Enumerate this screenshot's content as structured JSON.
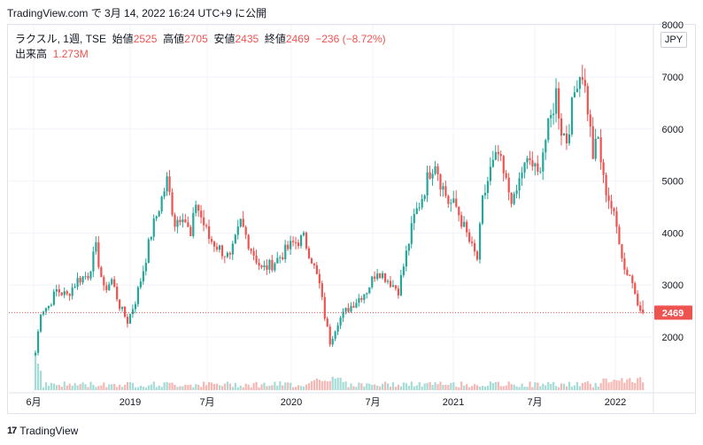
{
  "header": {
    "text": "TradingView.com で 3月 14, 2022 16:24 UTC+9 に公開"
  },
  "legend": {
    "symbol": "ラクスル, 1週, TSE",
    "open_label": "始値",
    "open_value": "2525",
    "high_label": "高値",
    "high_value": "2705",
    "low_label": "安値",
    "low_value": "2435",
    "close_label": "終値",
    "close_value": "2469",
    "change": "−236 (−8.72%)",
    "volume_label": "出来高",
    "volume_value": "1.273M"
  },
  "currency_label": "JPY",
  "footer": {
    "logo": "17",
    "brand": "TradingView"
  },
  "colors": {
    "up": "#26a69a",
    "down": "#ef5350",
    "up_vol": "#a6dcd6",
    "down_vol": "#f5b7b4",
    "grid": "#f0f3fa"
  },
  "chart_data": {
    "type": "candlestick",
    "symbol": "ラクスル",
    "interval": "1週",
    "exchange": "TSE",
    "currency": "JPY",
    "ylim": [
      1100,
      8050
    ],
    "y_ticks": [
      "2000",
      "3000",
      "4000",
      "5000",
      "6000",
      "7000",
      "8000"
    ],
    "x_ticks": [
      "6月",
      "2019",
      "7月",
      "2020",
      "7月",
      "2021",
      "7月",
      "2022"
    ],
    "last_price": "2469",
    "anchors": [
      {
        "w": 0,
        "p": 1700
      },
      {
        "w": 2,
        "p": 2500
      },
      {
        "w": 5,
        "p": 2600
      },
      {
        "w": 8,
        "p": 2900
      },
      {
        "w": 12,
        "p": 2800
      },
      {
        "w": 16,
        "p": 3100
      },
      {
        "w": 20,
        "p": 3200
      },
      {
        "w": 23,
        "p": 3700
      },
      {
        "w": 26,
        "p": 2900
      },
      {
        "w": 29,
        "p": 3100
      },
      {
        "w": 32,
        "p": 2600
      },
      {
        "w": 35,
        "p": 2300
      },
      {
        "w": 38,
        "p": 2700
      },
      {
        "w": 41,
        "p": 3300
      },
      {
        "w": 44,
        "p": 4000
      },
      {
        "w": 47,
        "p": 4500
      },
      {
        "w": 50,
        "p": 5000
      },
      {
        "w": 53,
        "p": 4200
      },
      {
        "w": 56,
        "p": 4400
      },
      {
        "w": 59,
        "p": 3900
      },
      {
        "w": 61,
        "p": 4600
      },
      {
        "w": 63,
        "p": 4300
      },
      {
        "w": 66,
        "p": 3900
      },
      {
        "w": 70,
        "p": 3700
      },
      {
        "w": 74,
        "p": 3500
      },
      {
        "w": 78,
        "p": 4200
      },
      {
        "w": 82,
        "p": 3700
      },
      {
        "w": 86,
        "p": 3300
      },
      {
        "w": 90,
        "p": 3400
      },
      {
        "w": 94,
        "p": 3600
      },
      {
        "w": 98,
        "p": 3800
      },
      {
        "w": 102,
        "p": 3900
      },
      {
        "w": 105,
        "p": 3500
      },
      {
        "w": 108,
        "p": 3000
      },
      {
        "w": 110,
        "p": 2400
      },
      {
        "w": 112,
        "p": 1900
      },
      {
        "w": 115,
        "p": 2300
      },
      {
        "w": 118,
        "p": 2500
      },
      {
        "w": 122,
        "p": 2700
      },
      {
        "w": 126,
        "p": 2900
      },
      {
        "w": 130,
        "p": 3300
      },
      {
        "w": 134,
        "p": 3100
      },
      {
        "w": 138,
        "p": 2900
      },
      {
        "w": 141,
        "p": 3600
      },
      {
        "w": 144,
        "p": 4300
      },
      {
        "w": 147,
        "p": 4700
      },
      {
        "w": 150,
        "p": 5200
      },
      {
        "w": 152,
        "p": 5400
      },
      {
        "w": 154,
        "p": 5000
      },
      {
        "w": 157,
        "p": 4600
      },
      {
        "w": 160,
        "p": 4500
      },
      {
        "w": 163,
        "p": 4100
      },
      {
        "w": 166,
        "p": 3700
      },
      {
        "w": 168,
        "p": 3500
      },
      {
        "w": 170,
        "p": 4600
      },
      {
        "w": 173,
        "p": 5200
      },
      {
        "w": 176,
        "p": 5500
      },
      {
        "w": 178,
        "p": 5100
      },
      {
        "w": 180,
        "p": 4800
      },
      {
        "w": 182,
        "p": 4600
      },
      {
        "w": 185,
        "p": 5200
      },
      {
        "w": 188,
        "p": 5400
      },
      {
        "w": 191,
        "p": 5100
      },
      {
        "w": 193,
        "p": 5600
      },
      {
        "w": 196,
        "p": 6200
      },
      {
        "w": 198,
        "p": 6700
      },
      {
        "w": 200,
        "p": 6000
      },
      {
        "w": 202,
        "p": 5800
      },
      {
        "w": 204,
        "p": 6400
      },
      {
        "w": 206,
        "p": 7000
      },
      {
        "w": 208,
        "p": 7100
      },
      {
        "w": 210,
        "p": 6400
      },
      {
        "w": 212,
        "p": 5500
      },
      {
        "w": 214,
        "p": 5800
      },
      {
        "w": 216,
        "p": 5000
      },
      {
        "w": 219,
        "p": 4500
      },
      {
        "w": 222,
        "p": 3900
      },
      {
        "w": 224,
        "p": 3300
      },
      {
        "w": 226,
        "p": 3200
      },
      {
        "w": 229,
        "p": 2700
      },
      {
        "w": 231,
        "p": 2469
      }
    ]
  }
}
